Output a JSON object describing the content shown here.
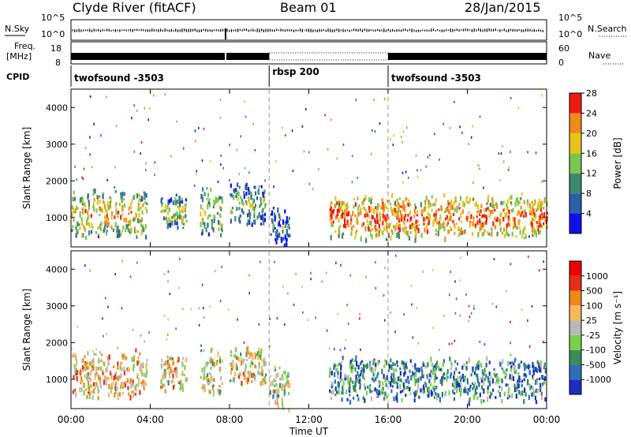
{
  "header": {
    "station": "Clyde River (fitACF)",
    "beam": "Beam 01",
    "date": "28/Jan/2015"
  },
  "summary": {
    "nsky_label": "N.Sky",
    "nsky_ticks": [
      "10^5",
      "10^0"
    ],
    "nsearch_label": "N.Search",
    "freq_label": "Freq.",
    "freq_unit": "[MHz]",
    "freq_ticks": [
      "18",
      "8"
    ],
    "nave_ticks": [
      "60",
      "0"
    ],
    "nave_label": "Nave",
    "cpid_label": "CPID"
  },
  "cpid_segments": [
    {
      "start_h": 0,
      "end_h": 10,
      "label": "twofsound -3503"
    },
    {
      "start_h": 10,
      "end_h": 16,
      "label": "rbsp 200"
    },
    {
      "start_h": 16,
      "end_h": 24,
      "label": "twofsound -3503"
    }
  ],
  "x_ticks": [
    "00:00",
    "04:00",
    "08:00",
    "12:00",
    "16:00",
    "20:00",
    "00:00"
  ],
  "x_label": "Time UT",
  "chart_data": [
    {
      "type": "heatmap",
      "quantity": "Power",
      "ylabel": "Slant Range [km]",
      "xlim_hours": [
        0,
        24
      ],
      "ylim_km": [
        200,
        4500
      ],
      "y_ticks": [
        1000,
        2000,
        3000,
        4000
      ],
      "colorbar_label": "Power [dB]",
      "colorbar_ticks": [
        "4",
        "8",
        "12",
        "16",
        "20",
        "24",
        "28"
      ],
      "colorbar_range": [
        0,
        30
      ],
      "colors": [
        "#1010ee",
        "#2b5fa8",
        "#3f8a6e",
        "#7ac74f",
        "#e8c31a",
        "#f08a1a",
        "#ee1a10"
      ],
      "scatter_regions": [
        {
          "t0": 0.0,
          "t1": 3.8,
          "r_center": 1150,
          "r_width": 700,
          "level": 0.75
        },
        {
          "t0": 4.5,
          "t1": 5.8,
          "r_center": 1200,
          "r_width": 500,
          "level": 0.6
        },
        {
          "t0": 6.5,
          "t1": 7.6,
          "r_center": 1200,
          "r_width": 700,
          "level": 0.65
        },
        {
          "t0": 8.0,
          "t1": 9.8,
          "r_center": 1400,
          "r_width": 600,
          "level": 0.5
        },
        {
          "t0": 10.0,
          "t1": 11.0,
          "r_center": 800,
          "r_width": 600,
          "level": 0.35
        },
        {
          "t0": 13.0,
          "t1": 24.0,
          "r_center": 1050,
          "r_width": 650,
          "level": 0.9
        }
      ]
    },
    {
      "type": "heatmap",
      "quantity": "Velocity",
      "ylabel": "Slant Range [km]",
      "xlim_hours": [
        0,
        24
      ],
      "ylim_km": [
        200,
        4500
      ],
      "y_ticks": [
        1000,
        2000,
        3000,
        4000
      ],
      "colorbar_label": "Velocity [m s⁻¹]",
      "colorbar_ticks": [
        "1000",
        "500",
        "100",
        "25",
        "-25",
        "-100",
        "-500",
        "-1000"
      ],
      "colors": [
        "#1a2fc0",
        "#2d6fb5",
        "#3a8c5a",
        "#7bd04b",
        "#b8b8b8",
        "#f3b95c",
        "#ef8a1a",
        "#e33015",
        "#ee0000"
      ],
      "scatter_regions": [
        {
          "t0": 0.0,
          "t1": 3.8,
          "r_center": 1150,
          "r_width": 700,
          "level": 0.6
        },
        {
          "t0": 4.5,
          "t1": 5.8,
          "r_center": 1200,
          "r_width": 500,
          "level": 0.55
        },
        {
          "t0": 6.5,
          "t1": 7.6,
          "r_center": 1300,
          "r_width": 700,
          "level": 0.5
        },
        {
          "t0": 8.0,
          "t1": 9.8,
          "r_center": 1400,
          "r_width": 600,
          "level": 0.55
        },
        {
          "t0": 10.0,
          "t1": 11.0,
          "r_center": 800,
          "r_width": 600,
          "level": 0.45
        },
        {
          "t0": 13.0,
          "t1": 24.0,
          "r_center": 1050,
          "r_width": 650,
          "level": 0.25
        }
      ]
    }
  ]
}
